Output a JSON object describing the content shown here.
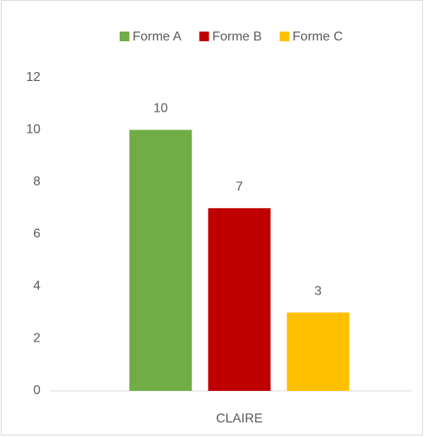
{
  "chart_data": {
    "type": "bar",
    "categories": [
      "CLAIRE"
    ],
    "series": [
      {
        "name": "Forme A",
        "color": "#70ad47",
        "values": [
          10
        ]
      },
      {
        "name": "Forme B",
        "color": "#c00000",
        "values": [
          7
        ]
      },
      {
        "name": "Forme C",
        "color": "#ffc000",
        "values": [
          3
        ]
      }
    ],
    "ylim": [
      0,
      12
    ],
    "yticks": [
      0,
      2,
      4,
      6,
      8,
      10,
      12
    ],
    "grid": false,
    "legend": "top"
  }
}
